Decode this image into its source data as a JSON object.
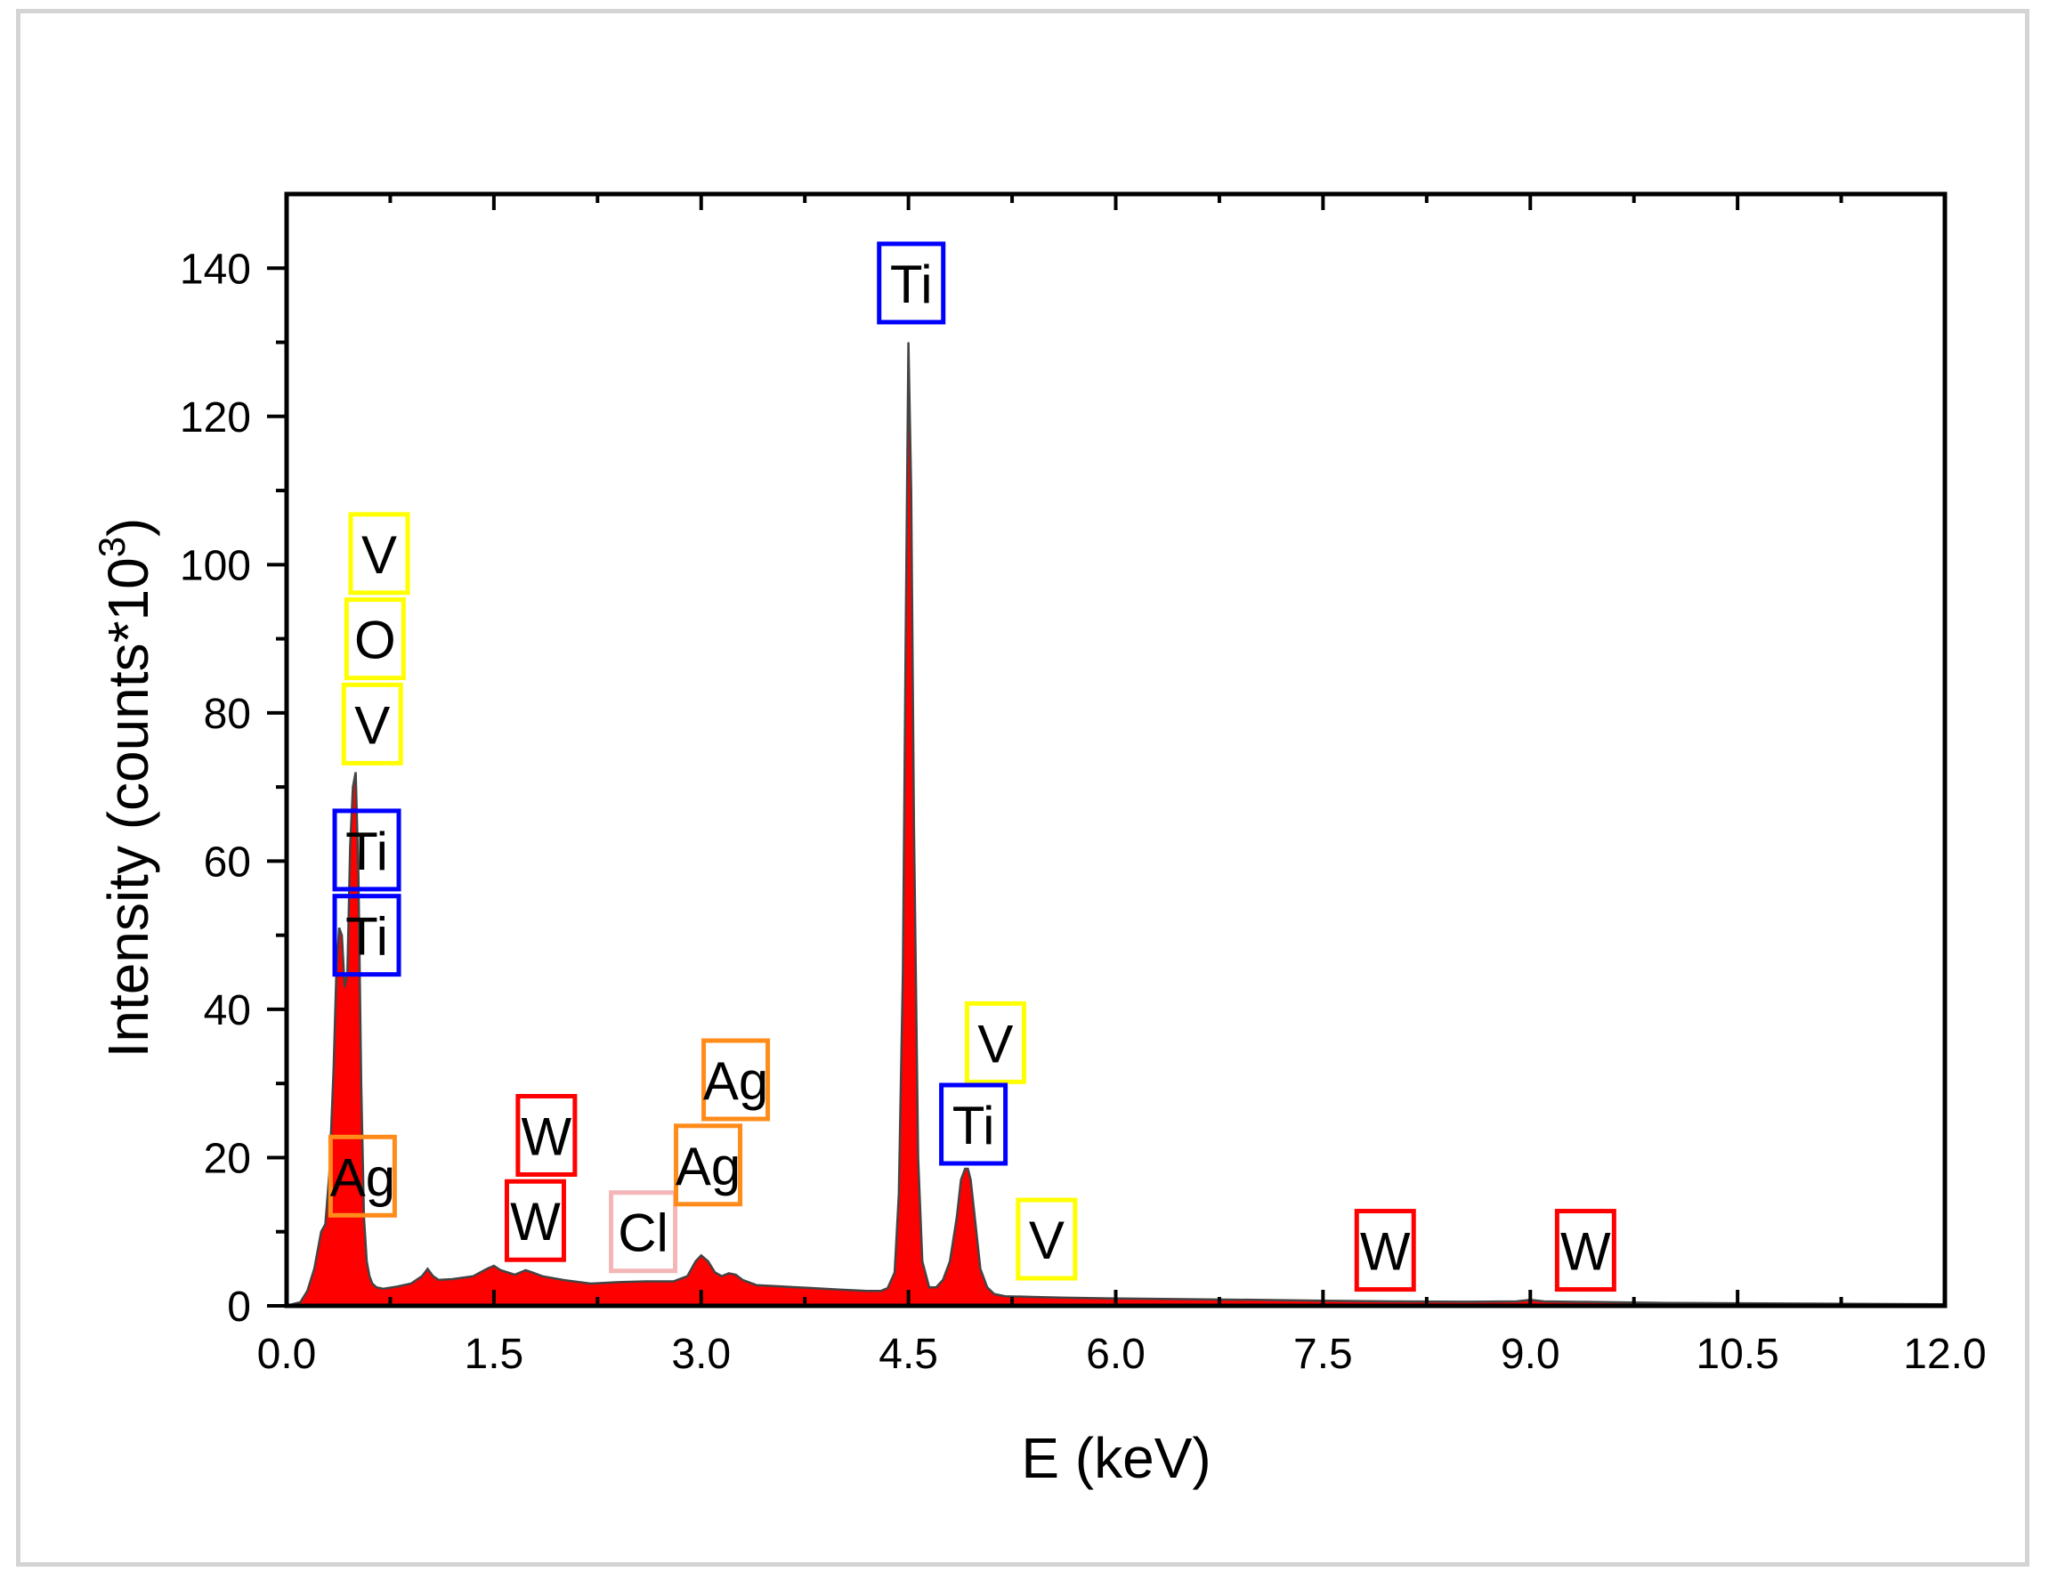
{
  "chart_data": {
    "type": "area",
    "xlabel": "E (keV)",
    "ylabel": {
      "base": "Intensity (counts*10",
      "superscript": "3",
      "close": ")"
    },
    "xlim": [
      0.0,
      12.0
    ],
    "ylim": [
      0,
      150
    ],
    "xticks": [
      "0.0",
      "1.5",
      "3.0",
      "4.5",
      "6.0",
      "7.5",
      "9.0",
      "10.5",
      "12.0"
    ],
    "xtick_values": [
      0,
      1.5,
      3.0,
      4.5,
      6.0,
      7.5,
      9.0,
      10.5,
      12.0
    ],
    "yticks": [
      "0",
      "20",
      "40",
      "60",
      "80",
      "100",
      "120",
      "140"
    ],
    "ytick_values": [
      0,
      20,
      40,
      60,
      80,
      100,
      120,
      140
    ],
    "grid": false,
    "fill_color": "#ff0000",
    "line_color": "#444444",
    "series": [
      {
        "x": [
          0.0,
          0.1,
          0.15,
          0.2,
          0.25,
          0.28,
          0.31,
          0.34,
          0.36,
          0.38,
          0.4,
          0.42,
          0.44,
          0.46,
          0.48,
          0.5,
          0.52,
          0.54,
          0.56,
          0.58,
          0.6,
          0.62,
          0.65,
          0.7,
          0.8,
          0.9,
          0.98,
          1.02,
          1.06,
          1.1,
          1.2,
          1.35,
          1.45,
          1.5,
          1.55,
          1.65,
          1.73,
          1.78,
          1.85,
          2.0,
          2.2,
          2.4,
          2.6,
          2.8,
          2.9,
          2.96,
          3.0,
          3.05,
          3.1,
          3.15,
          3.2,
          3.25,
          3.3,
          3.4,
          3.6,
          3.8,
          4.0,
          4.2,
          4.3,
          4.35,
          4.4,
          4.43,
          4.46,
          4.48,
          4.5,
          4.52,
          4.54,
          4.57,
          4.6,
          4.65,
          4.7,
          4.75,
          4.8,
          4.85,
          4.88,
          4.91,
          4.93,
          4.95,
          4.98,
          5.02,
          5.07,
          5.12,
          5.2,
          5.4,
          5.6,
          6.0,
          6.5,
          7.0,
          7.5,
          8.0,
          8.5,
          8.9,
          9.0,
          9.1,
          9.5,
          10.0,
          10.5,
          11.0,
          11.5,
          12.0
        ],
        "y": [
          0,
          0.5,
          2,
          5,
          10,
          11,
          18,
          32,
          45,
          51,
          50,
          43,
          45,
          62,
          70,
          72,
          58,
          30,
          12,
          6,
          4,
          3,
          2.5,
          2.3,
          2.6,
          3.0,
          4.0,
          5.0,
          4.0,
          3.5,
          3.6,
          4.0,
          5.0,
          5.4,
          4.8,
          4.2,
          4.8,
          4.5,
          4.0,
          3.5,
          3.0,
          3.2,
          3.3,
          3.3,
          4.0,
          6.0,
          6.8,
          6.0,
          4.5,
          4.0,
          4.4,
          4.2,
          3.5,
          2.8,
          2.6,
          2.4,
          2.2,
          2.0,
          2.0,
          2.4,
          4.5,
          15,
          45,
          90,
          130,
          110,
          65,
          20,
          6,
          2.5,
          2.5,
          3.5,
          6,
          12,
          17,
          18.5,
          18.5,
          17,
          12,
          5,
          2.5,
          1.6,
          1.3,
          1.2,
          1.1,
          1.0,
          0.9,
          0.8,
          0.7,
          0.6,
          0.55,
          0.6,
          0.8,
          0.6,
          0.5,
          0.4,
          0.35,
          0.3,
          0.25,
          0.2
        ]
      }
    ],
    "annotations": [
      {
        "text": "Ti",
        "x": 4.52,
        "y": 138,
        "color": "#0000ff"
      },
      {
        "text": "V",
        "x": 0.67,
        "y": 101.5,
        "color": "#ffff00"
      },
      {
        "text": "O",
        "x": 0.64,
        "y": 90,
        "color": "#ffff00"
      },
      {
        "text": "V",
        "x": 0.62,
        "y": 78.5,
        "color": "#ffff00"
      },
      {
        "text": "Ti",
        "x": 0.58,
        "y": 61.5,
        "color": "#0000ff"
      },
      {
        "text": "Ti",
        "x": 0.58,
        "y": 50,
        "color": "#0000ff"
      },
      {
        "text": "Ag",
        "x": 0.55,
        "y": 17.5,
        "color": "#ff8c1a"
      },
      {
        "text": "W",
        "x": 1.88,
        "y": 23,
        "color": "#ff0000"
      },
      {
        "text": "W",
        "x": 1.8,
        "y": 11.5,
        "color": "#ff0000"
      },
      {
        "text": "Cl",
        "x": 2.58,
        "y": 10,
        "color": "#f4b6b6"
      },
      {
        "text": "Ag",
        "x": 3.25,
        "y": 30.5,
        "color": "#ff8c1a"
      },
      {
        "text": "Ag",
        "x": 3.05,
        "y": 19,
        "color": "#ff8c1a"
      },
      {
        "text": "V",
        "x": 5.13,
        "y": 35.5,
        "color": "#ffff00"
      },
      {
        "text": "Ti",
        "x": 4.97,
        "y": 24.5,
        "color": "#0000ff"
      },
      {
        "text": "V",
        "x": 5.5,
        "y": 9,
        "color": "#ffff00"
      },
      {
        "text": "W",
        "x": 7.95,
        "y": 7.5,
        "color": "#ff0000"
      },
      {
        "text": "W",
        "x": 9.4,
        "y": 7.5,
        "color": "#ff0000"
      }
    ]
  }
}
